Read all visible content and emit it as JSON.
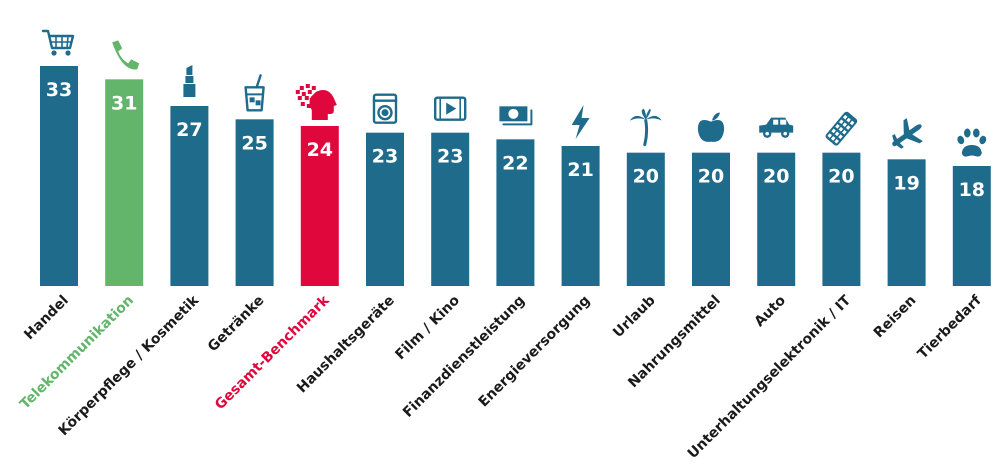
{
  "chart_data": {
    "type": "bar",
    "categories": [
      "Handel",
      "Telekommunikation",
      "Körperpflege / Kosmetik",
      "Getränke",
      "Gesamt-Benchmark",
      "Haushaltsgeräte",
      "Film / Kino",
      "Finanzdienstleistung",
      "Energieversorgung",
      "Urlaub",
      "Nahrungsmittel",
      "Auto",
      "Unterhaltungselektronik / IT",
      "Reisen",
      "Tierbedarf"
    ],
    "values": [
      33,
      31,
      27,
      25,
      24,
      23,
      23,
      22,
      21,
      20,
      20,
      20,
      20,
      19,
      18
    ],
    "icons": [
      "shopping-cart-icon",
      "phone-icon",
      "lipstick-icon",
      "drink-glass-icon",
      "head-pixels-icon",
      "washing-machine-icon",
      "film-icon",
      "banknote-icon",
      "lightning-icon",
      "palm-tree-icon",
      "apple-icon",
      "car-icon",
      "remote-control-icon",
      "airplane-icon",
      "paw-icon"
    ],
    "highlights": {
      "Telekommunikation": "#62b56a",
      "Gesamt-Benchmark": "#e0073d"
    },
    "colors": {
      "bar": "#1e6b8c",
      "highlight_green": "#62b56a",
      "highlight_red": "#e0073d",
      "label": "#1a1a1a",
      "bar_text": "#ffffff"
    },
    "ylim": [
      0,
      33
    ],
    "title": "",
    "xlabel": "",
    "ylabel": "",
    "grid": false,
    "legend": "none"
  }
}
